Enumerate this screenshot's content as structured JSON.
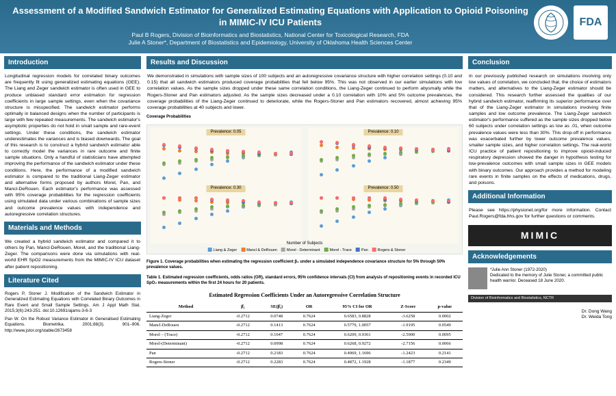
{
  "header": {
    "title": "Assessment of a Modified Sandwich Estimator for Generalized Estimating Equations with Application to Opioid Poisoning in MIMIC-IV ICU Patients",
    "authors_line1": "Paul B Rogers, Division of Bioinformatics and Biostatistics, National Center for Toxicological Research, FDA",
    "authors_line2": "Julie A Stoner*, Department of Biostatistics and Epidemiology, University of Oklahoma Health Sciences Center",
    "fda_label": "FDA"
  },
  "sections": {
    "intro_hdr": "Introduction",
    "intro_body": "Longitudinal regression models for correlated binary outcomes are frequently fit using generalized estimating equations (GEE). The Liang and Zeger sandwich estimator is often used in GEE to produce unbiased standard error estimation for regression coefficients in large sample settings, even when the covariance structure is misspecified. The sandwich estimator performs optimally in balanced designs when the number of participants is large with few repeated measurements. The sandwich estimator's asymptotic properties do not hold in small sample and rare-event settings. Under these conditions, the sandwich estimator underestimates the variances and is biased downwards. The goal of this research is to construct a hybrid sandwich estimator able to correctly model the variances in rare outcome and finite sample situations. Only a handful of statisticians have attempted improving the performance of the sandwich estimator under these conditions. Here, the performance of a modified sandwich estimator is compared to the traditional Liang-Zeger estimator and alternative forms proposed by authors Morel, Pan, and Mancl-DeRouen. Each estimator's performance was assessed with 95% coverage probabilities for the regression coefficients using simulated data under various combinations of sample sizes and outcome prevalence values with independence and autoregressive correlation structures.",
    "methods_hdr": "Materials and Methods",
    "methods_body": "We created a hybrid sandwich estimator and compared it to others by Pan, Mancl-DeRouen, Morel, and the traditional Liang-Zeger. The comparisons were done via simulations with real-world EHR SpO2 measurements from the MIMIC-IV ICU dataset after patient repositioning.",
    "lit_hdr": "Literature Cited",
    "ref1": "Rogers P, Stoner J. Modification of the Sandwich Estimator in Generalized Estimating Equations with Correlated Binary Outcomes in Rare Event and Small Sample Settings. Am J Appl Math Stat. 2015;3(6):243-251. doi:10.12691/ajams-3-6-3",
    "ref2": "Pan W. On the Robust Variance Estimator in Generalised Estimating Equations. Biometrika. 2001;88(3). 901–906. http://www.jstor.org/stable/2673458",
    "results_hdr": "Results and Discussion",
    "results_body": "We demonstrated in simulations with sample sizes of 100 subjects and an autoregressive covariance structure with higher correlation settings (0.10 and 0.15) that all sandwich estimators produced coverage probabilities that fell below 95%. This was not observed in our earlier simulations with low correlation values. As the sample sizes dropped under these same correlation conditions, the Liang-Zeger continued to perform abysmally while the Rogers-Stoner and Pan estimators adjusted. As the sample sizes decreased under a 0.10 correlation with 10% and 5% outcome prevalences, the coverage probabilities of the Liang-Zeger continued to deteriorate, while the Rogers-Stoner and Pan estimators recovered, almost achieving 95% coverage probabilities at 40 subjects and lower.",
    "cov_prob_label": "Coverage Probabilities",
    "fig1_caption": "Figure 1. Coverage probabilities when estimating the regression coefficient β₁ under a simulated independence covariance structure for 5% through 50% prevalence values.",
    "table1_caption": "Table 1. Estimated regression coefficients, odds ratios (OR), standard errors, 95% confidence intervals (CI) from analysis of repositioning events in recorded ICU SpO₂ measurements within the first 24 hours for 20 patients.",
    "conclusion_hdr": "Conclusion",
    "conclusion_body": "In our previously published research on simulations involving only low values of correlation, we concluded that, the choice of estimators matters, and alternatives to the Liang-Zeger estimator should be considered. This research further assessed the qualities of our hybrid sandwich estimator, reaffirming its superior performance over that of the Liang-Zeger estimator in simulations involving finite samples and low outcome prevalence. The Liang-Zeger sandwich estimator's performance suffered as the sample sizes dropped below 60 subjects under correlation settings as low as .01, when outcome prevalence values were less than 30%. This drop-off in performance was exacerbated further by lower outcome prevalence values, smaller sample sizes, and higher correlation settings. The real-world ICU practice of patient repositioning to improve opioid-induced respiratory depression showed the danger in hypothesis testing for low-prevalence outcomes with small sample sizes in GEE models with binary outcomes. Our approach provides a method for modeling rare events in finite samples on the effects of medications, drugs, and poisons.",
    "addinfo_hdr": "Additional Information",
    "addinfo_body": "Please see https://physionet.org/for more information. Contact Paul.Rogers@fda.hhs.gov for further questions or comments.",
    "ack_hdr": "Acknowledgements",
    "memorial": "*Julie Ann Stoner (1972-2020)\nDedicated to the memory of Julie Stoner, a committed public health warrior. Deceased 18 June 2020.",
    "nctr": "Division of Bioinformatics and Biostatistics, NCTR",
    "ack_name1": "Dr. Dong Wang",
    "ack_name2": "Dr. Weida Tong"
  },
  "chart": {
    "panel_labels": [
      "Prevalence: 0.05",
      "Prevalence: 0.10",
      "Prevalence: 0.30",
      "Prevalence: 0.50"
    ],
    "xlabel": "Number of Subjects",
    "ylabel": "",
    "legend_items": [
      "Liang & Zeger",
      "Mancl & DeRouen",
      "Morel - Determinant",
      "Morel - Trace",
      "Pan",
      "Rogers & Stoner"
    ],
    "colors": [
      "#5b9bd5",
      "#ed7d31",
      "#a5a5a5",
      "#70ad47",
      "#4472c4",
      "#ff6b6b"
    ],
    "x_ticks": [
      20,
      30,
      40,
      50,
      60,
      70,
      80,
      90,
      100
    ]
  },
  "table": {
    "title": "Estimated Regression Coefficients Under an Autoregressive Correlation Structure",
    "cols": [
      "Method",
      "β̂₁",
      "SE(β̂₁)",
      "OR",
      "95% CI for OR",
      "Z-Score",
      "p-value"
    ],
    "rows": [
      [
        "Liang-Zeger",
        "-0.2712",
        "0.0748",
        "0.7624",
        "0.6583, 0.8828",
        "-3.6258",
        "0.0002"
      ],
      [
        "Mancl-DeRouen",
        "-0.2712",
        "0.1413",
        "0.7624",
        "0.5779, 1.0057",
        "-1.9195",
        "0.0549"
      ],
      [
        "Morel – (Trace)",
        "-0.2712",
        "0.1047",
        "0.7624",
        "0.6209, 0.9361",
        "-2.5900",
        "0.0095"
      ],
      [
        "Morel-(Determinant)",
        "-0.2712",
        "0.0998",
        "0.7624",
        "0.6268, 0.9272",
        "-2.7156",
        "0.0066"
      ],
      [
        "Pan",
        "-0.2712",
        "0.2183",
        "0.7624",
        "0.4969, 1.1696",
        "-1.2423",
        "0.2141"
      ],
      [
        "Rogers-Stoner",
        "-0.2712",
        "0.2283",
        "0.7624",
        "0.4872, 1.1928",
        "-1.1877",
        "0.2349"
      ]
    ]
  },
  "mimic": "MIMIC"
}
